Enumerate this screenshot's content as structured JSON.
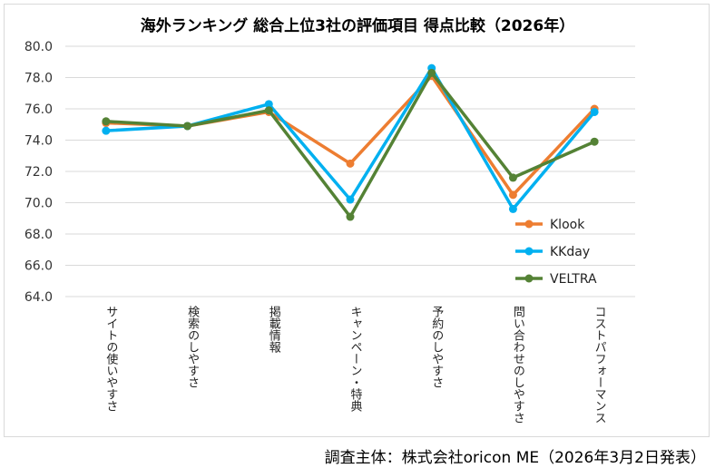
{
  "chart_data": {
    "type": "line",
    "title": "海外ランキング 総合上位3社の評価項目 得点比較（2026年）",
    "categories": [
      "サイトの使いやすさ",
      "検索のしやすさ",
      "掲載情報",
      "キャンペーン・特典",
      "予約のしやすさ",
      "問い合わせのしやすさ",
      "コストパフォーマンス"
    ],
    "ylim": [
      64.0,
      80.0
    ],
    "yticks": [
      "64.0",
      "66.0",
      "68.0",
      "70.0",
      "72.0",
      "74.0",
      "76.0",
      "78.0",
      "80.0"
    ],
    "grid": true,
    "legend_position": "right",
    "series": [
      {
        "name": "Klook",
        "color": "#ed7d31",
        "values": [
          75.1,
          74.9,
          75.8,
          72.5,
          78.1,
          70.5,
          76.0
        ]
      },
      {
        "name": "KKday",
        "color": "#00b0f0",
        "values": [
          74.6,
          74.9,
          76.3,
          70.2,
          78.6,
          69.6,
          75.8
        ]
      },
      {
        "name": "VELTRA",
        "color": "#548235",
        "values": [
          75.2,
          74.9,
          75.9,
          69.1,
          78.3,
          71.6,
          73.9
        ]
      }
    ]
  },
  "source_note": "調査主体：株式会社oricon ME（2026年3月2日発表）"
}
